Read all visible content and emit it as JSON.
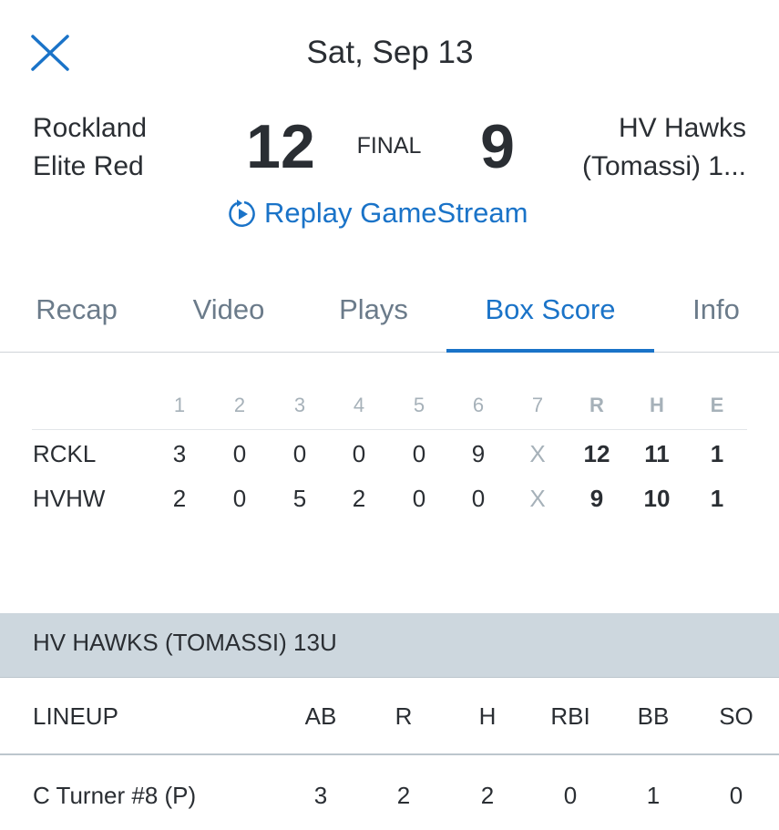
{
  "header": {
    "close_icon": "close-x-icon",
    "date": "Sat, Sep 13"
  },
  "game": {
    "away_team": [
      "Rockland",
      "Elite Red"
    ],
    "away_score": "12",
    "status": "FINAL",
    "home_score": "9",
    "home_team": [
      "HV Hawks",
      "(Tomassi) 1..."
    ],
    "replay_label": "Replay GameStream",
    "replay_icon": "replay-play-icon"
  },
  "tabs": [
    {
      "label": "Recap",
      "active": false
    },
    {
      "label": "Video",
      "active": false
    },
    {
      "label": "Plays",
      "active": false
    },
    {
      "label": "Box Score",
      "active": true
    },
    {
      "label": "Info",
      "active": false
    }
  ],
  "linescore": {
    "headers": [
      "1",
      "2",
      "3",
      "4",
      "5",
      "6",
      "7",
      "R",
      "H",
      "E"
    ],
    "rows": [
      {
        "team": "RCKL",
        "values": [
          "3",
          "0",
          "0",
          "0",
          "0",
          "9",
          "X",
          "12",
          "11",
          "1"
        ]
      },
      {
        "team": "HVHW",
        "values": [
          "2",
          "0",
          "5",
          "2",
          "0",
          "0",
          "X",
          "9",
          "10",
          "1"
        ]
      }
    ]
  },
  "boxscore": {
    "team_header": "HV HAWKS (TOMASSI) 13U",
    "columns": [
      "LINEUP",
      "AB",
      "R",
      "H",
      "RBI",
      "BB",
      "SO"
    ],
    "rows": [
      {
        "player": "C Turner #8 (P)",
        "values": [
          "3",
          "2",
          "2",
          "0",
          "1",
          "0"
        ]
      }
    ]
  },
  "colors": {
    "accent": "#1a73c8",
    "text": "#2a2e33",
    "muted": "#6b7b8a",
    "band": "#cdd7de"
  }
}
